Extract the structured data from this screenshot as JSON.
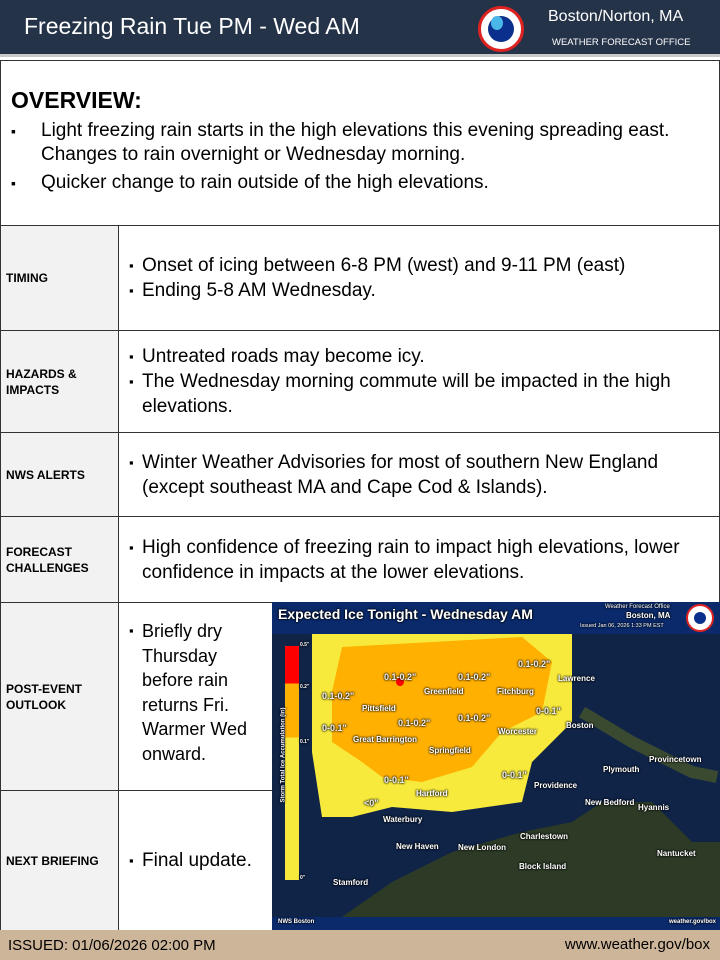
{
  "header": {
    "title": "Freezing Rain Tue PM - Wed AM",
    "office": "Boston/Norton, MA",
    "office_sub": "WEATHER FORECAST OFFICE",
    "logo_text": "NATIONAL WEATHER SERVICE"
  },
  "overview": {
    "heading": "OVERVIEW:",
    "bullets": [
      "Light freezing rain starts in the high elevations this evening spreading east. Changes to rain overnight or Wednesday morning.",
      "Quicker change to rain outside of the high elevations."
    ]
  },
  "rows": [
    {
      "label": "TIMING",
      "bullets": [
        "Onset of icing between 6-8 PM (west) and 9-11 PM (east)",
        "Ending 5-8 AM Wednesday."
      ]
    },
    {
      "label": "HAZARDS & IMPACTS",
      "bullets": [
        "Untreated roads may become icy.",
        "The Wednesday morning commute will be impacted in the high elevations."
      ]
    },
    {
      "label": "NWS ALERTS",
      "bullets": [
        "Winter Weather Advisories for most of southern New England (except southeast MA and Cape Cod & Islands)."
      ]
    },
    {
      "label": "FORECAST CHALLENGES",
      "bullets": [
        "High confidence of freezing rain to impact high elevations, lower confidence in impacts at the lower elevations."
      ]
    },
    {
      "label": "POST-EVENT OUTLOOK",
      "bullets": [
        "Briefly dry Thursday before rain returns Fri. Warmer Wed onward."
      ]
    },
    {
      "label": "NEXT BRIEFING",
      "bullets": [
        "Final update."
      ]
    }
  ],
  "map": {
    "title": "Expected Ice Tonight - Wednesday AM",
    "office": "Weather Forecast Office",
    "city": "Boston, MA",
    "issued": "Issued Jan 06, 2026 1:33 PM EST",
    "legend_title": "Storm Total Ice Accumulation (in)",
    "legend_ticks": [
      "0.5\"",
      "0.2\"",
      "0.1\"",
      "0\""
    ],
    "legend_colors": [
      "#ff0000",
      "#ffb000",
      "#f7ea3c"
    ],
    "labels": [
      "0.1-0.2\"",
      "0.1-0.2\"",
      "0.1-0.2\"",
      "0.1-0.2\"",
      "0-0.1\"",
      "0.1-0.2\"",
      "0-0.1\"",
      "0.1-0.2\"",
      "0-0.1\"",
      "0-0.1\"",
      "<0\""
    ],
    "cities": [
      "Lawrence",
      "Greenfield",
      "Fitchburg",
      "Pittsfield",
      "Boston",
      "Worcester",
      "Great Barrington",
      "Springfield",
      "Provincetown",
      "Plymouth",
      "Providence",
      "Hartford",
      "New Bedford",
      "Hyannis",
      "Waterbury",
      "Charlestown",
      "New London",
      "New Haven",
      "Nantucket",
      "Block Island",
      "Stamford"
    ],
    "highways": [
      "495",
      "91",
      "90",
      "90",
      "95",
      "495",
      "84",
      "95",
      "95"
    ],
    "footer_left": "NWS Boston",
    "footer_right": "weather.gov/box"
  },
  "footer": {
    "issued": "ISSUED: 01/06/2026 02:00 PM",
    "url": "www.weather.gov/box"
  }
}
